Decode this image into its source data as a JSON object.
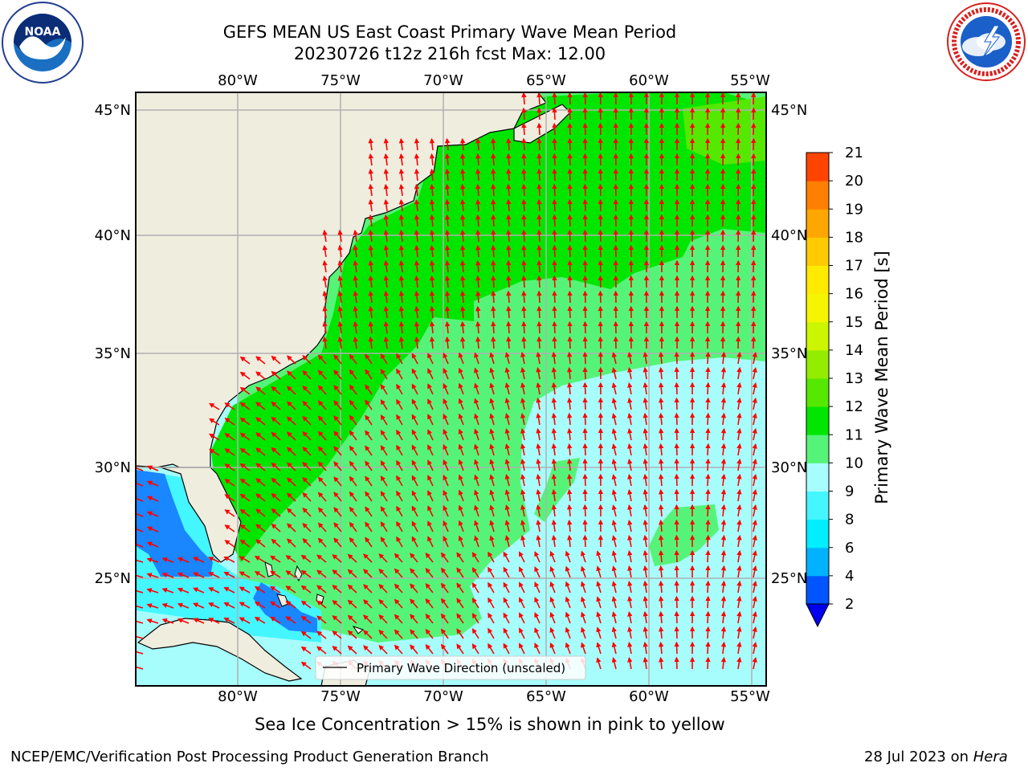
{
  "header": {
    "title_line1": "GEFS MEAN US East Coast Primary Wave Mean Period",
    "title_line2": "20230726 t12z 216h fcst   Max: 12.00"
  },
  "logos": {
    "left": {
      "name": "noaa-logo",
      "text": "NOAA"
    },
    "right": {
      "name": "nws-logo"
    }
  },
  "map": {
    "lon_labels_top": [
      "80°W",
      "75°W",
      "70°W",
      "65°W",
      "60°W",
      "55°W"
    ],
    "lon_labels_bottom": [
      "80°W",
      "75°W",
      "70°W",
      "65°W",
      "60°W",
      "55°W"
    ],
    "lat_labels_left": [
      "45°N",
      "40°N",
      "35°N",
      "30°N",
      "25°N"
    ],
    "lat_labels_right": [
      "45°N",
      "40°N",
      "35°N",
      "30°N",
      "25°N"
    ],
    "legend_label": "Primary Wave Direction (unscaled)",
    "arrow_color": "#ff0000",
    "land_color": "#efedde"
  },
  "colorbar": {
    "label": "Primary Wave Mean Period [s]",
    "ticks": [
      "2",
      "4",
      "6",
      "8",
      "9",
      "10",
      "11",
      "12",
      "13",
      "14",
      "15",
      "16",
      "17",
      "18",
      "19",
      "20",
      "21"
    ],
    "colors": [
      "#0055ff",
      "#00b2ff",
      "#00eeff",
      "#44f6ff",
      "#a7fdfc",
      "#55f479",
      "#00e600",
      "#55e800",
      "#94ec00",
      "#ccf500",
      "#f5f500",
      "#ffeb00",
      "#ffcb00",
      "#ffa600",
      "#ff7f00",
      "#ff4400",
      "#ff1600"
    ],
    "extend_color": "#0000ee"
  },
  "captions": {
    "sea_ice": "Sea Ice Concentration > 15% is shown in pink to yellow",
    "footer_left": "NCEP/EMC/Verification Post Processing Product Generation Branch",
    "footer_date": "28 Jul 2023 on ",
    "footer_host": "Hera"
  }
}
